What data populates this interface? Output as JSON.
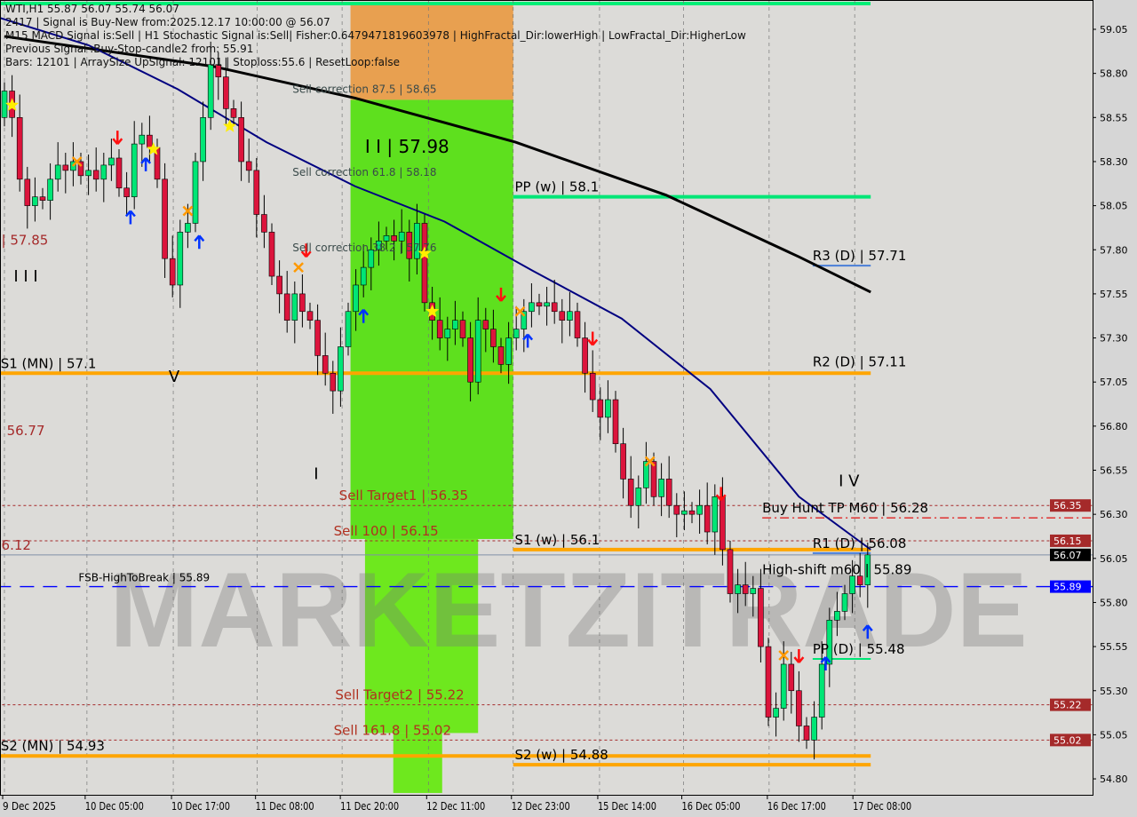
{
  "header": {
    "symbol_line": "WTI,H1  55.87 56.07 55.74 56.07",
    "lines": [
      "2417 | Signal is Buy-New from:2025.12.17 10:00:00 @ 56.07",
      "M15 MACD Signal is:Sell | H1 Stochastic Signal is:Sell| Fisher:0.6479471819603978 | HighFractal_Dir:lowerHigh | LowFractal_Dir:HigherLow",
      "Previous Signal :Buy-Stop-candle2 from: 55.91",
      "Bars: 12101 | ArraySize UpSignal: 12101 | Stoploss:55.6 | ResetLoop:false"
    ]
  },
  "watermark": "MARKETZITRADE",
  "colors": {
    "bull": "#00e676",
    "bear": "#dc143c",
    "orange": "#ffa500",
    "green_zone": "#5ee01e",
    "blue_ma": "#000080",
    "black_ma": "#000000",
    "level_green": "#00e676",
    "axis_red": "#a52a2a",
    "axis_blue": "#0000ff"
  },
  "chart_data": {
    "type": "candlestick",
    "symbol": "WTI",
    "timeframe": "H1",
    "ylim": [
      54.72,
      59.2
    ],
    "y_ticks": [
      59.05,
      58.8,
      58.55,
      58.3,
      58.05,
      57.8,
      57.55,
      57.3,
      57.05,
      56.8,
      56.55,
      56.3,
      56.05,
      55.8,
      55.55,
      55.3,
      55.05,
      54.8
    ],
    "x_ticks": [
      {
        "index": 0,
        "label": "9 Dec 2025"
      },
      {
        "index": 10.8,
        "label": "10 Dec 05:00"
      },
      {
        "index": 22.1,
        "label": "10 Dec 17:00"
      },
      {
        "index": 33.1,
        "label": "11 Dec 08:00"
      },
      {
        "index": 44.2,
        "label": "11 Dec 20:00"
      },
      {
        "index": 55.5,
        "label": "12 Dec 11:00"
      },
      {
        "index": 66.6,
        "label": "12 Dec 23:00"
      },
      {
        "index": 77.9,
        "label": "15 Dec 14:00"
      },
      {
        "index": 88.9,
        "label": "16 Dec 05:00"
      },
      {
        "index": 100.1,
        "label": "16 Dec 17:00"
      },
      {
        "index": 111.3,
        "label": "17 Dec 08:00"
      }
    ],
    "first_open": 58.55,
    "close": [
      58.7,
      58.55,
      58.2,
      58.05,
      58.1,
      58.08,
      58.2,
      58.28,
      58.25,
      58.3,
      58.22,
      58.25,
      58.2,
      58.28,
      58.32,
      58.15,
      58.1,
      58.4,
      58.45,
      58.38,
      58.2,
      57.75,
      57.6,
      57.9,
      57.95,
      58.3,
      58.55,
      58.85,
      58.78,
      58.6,
      58.55,
      58.3,
      58.25,
      58.0,
      57.9,
      57.65,
      57.55,
      57.4,
      57.55,
      57.45,
      57.4,
      57.2,
      57.1,
      57.0,
      57.25,
      57.45,
      57.6,
      57.7,
      57.8,
      57.85,
      57.88,
      57.85,
      57.9,
      57.75,
      57.95,
      57.5,
      57.4,
      57.3,
      57.35,
      57.4,
      57.3,
      57.05,
      57.4,
      57.35,
      57.25,
      57.15,
      57.3,
      57.35,
      57.45,
      57.5,
      57.48,
      57.5,
      57.45,
      57.4,
      57.45,
      57.3,
      57.1,
      56.95,
      56.85,
      56.95,
      56.7,
      56.5,
      56.35,
      56.45,
      56.6,
      56.4,
      56.5,
      56.35,
      56.3,
      56.32,
      56.3,
      56.35,
      56.2,
      56.4,
      56.1,
      55.85,
      55.9,
      55.85,
      55.88,
      55.55,
      55.15,
      55.2,
      55.45,
      55.3,
      55.1,
      55.02,
      55.15,
      55.45,
      55.7,
      55.75,
      55.85,
      55.95,
      55.9,
      56.07
    ],
    "moving_averages": [
      {
        "color": "#000000",
        "points": [
          [
            0,
            59.01
          ],
          [
            27.3,
            58.84
          ],
          [
            45.9,
            58.66
          ],
          [
            66.9,
            58.41
          ],
          [
            86.6,
            58.11
          ],
          [
            104,
            57.76
          ],
          [
            113.4,
            57.56
          ]
        ]
      },
      {
        "color": "#000080",
        "points": [
          [
            -1,
            59.12
          ],
          [
            11,
            58.96
          ],
          [
            22.7,
            58.71
          ],
          [
            34.3,
            58.41
          ],
          [
            45.9,
            58.16
          ],
          [
            57.6,
            57.96
          ],
          [
            69.2,
            57.68
          ],
          [
            80.8,
            57.41
          ],
          [
            92.4,
            57.01
          ],
          [
            104,
            56.4
          ],
          [
            113.4,
            56.1
          ]
        ]
      }
    ],
    "zones": [
      {
        "from": 45.3,
        "to": 66.6,
        "top": 59.19,
        "bottom": 58.65,
        "color": "#e8a050"
      },
      {
        "from": 45.3,
        "to": 66.6,
        "top": 58.65,
        "bottom": 56.16,
        "color": "#5ee01e"
      },
      {
        "from": 47.2,
        "to": 62,
        "top": 56.16,
        "bottom": 55.06,
        "color": "#6ee81e"
      },
      {
        "from": 50.9,
        "to": 57.3,
        "top": 55.06,
        "bottom": 54.72,
        "color": "#6ee81e"
      }
    ],
    "levels": [
      {
        "label": "S1 (MN) | 57.1",
        "price": 57.1,
        "from": -1,
        "to": 113.4,
        "color": "#ffa500",
        "style": "thick",
        "lx": -0.5
      },
      {
        "label": "S2 (MN) | 54.93",
        "price": 54.93,
        "from": -1,
        "to": 113.4,
        "color": "#ffa500",
        "style": "thick",
        "lx": -0.5
      },
      {
        "label": "PP (w) | 58.1",
        "price": 58.1,
        "from": 66.6,
        "to": 113.4,
        "color": "#00e676",
        "style": "thick",
        "lx": 66.8
      },
      {
        "label": "S1 (w) | 56.1",
        "price": 56.1,
        "from": 66.6,
        "to": 113.4,
        "color": "#ffa500",
        "style": "thick",
        "lx": 66.8
      },
      {
        "label": "S2 (w) | 54.88",
        "price": 54.88,
        "from": 66.6,
        "to": 113.4,
        "color": "#ffa500",
        "style": "thick",
        "lx": 66.8
      },
      {
        "label": "R3 (D) | 57.71",
        "price": 57.71,
        "from": 105.8,
        "to": 113.4,
        "color": "#4a7fd8",
        "style": "thin",
        "lx": 105.8
      },
      {
        "label": "R2 (D) | 57.11",
        "price": 57.11,
        "from": 105.8,
        "to": 113.4,
        "color": "#ffa500",
        "style": "none",
        "lx": 105.8
      },
      {
        "label": "R1 (D) | 56.08",
        "price": 56.08,
        "from": 105.8,
        "to": 113.4,
        "color": "#4a7fd8",
        "style": "thin",
        "lx": 105.8
      },
      {
        "label": "PP (D) | 55.48",
        "price": 55.48,
        "from": 105.8,
        "to": 113.4,
        "color": "#00e676",
        "style": "thin",
        "lx": 105.8
      },
      {
        "label": "Buy Hunt TP M60 | 56.28",
        "price": 56.28,
        "from": 99.2,
        "to": 143,
        "color": "#e01010",
        "style": "dashdot",
        "lx": 99.2
      },
      {
        "label": "High-shift m60 | 55.89",
        "price": 55.93,
        "from": 0,
        "to": 0,
        "color": "#000",
        "style": "none",
        "lx": 99.2
      },
      {
        "label": "FSB-HighToBreak | 55.89",
        "price": 55.89,
        "from": -1,
        "to": 143,
        "color": "#0000ff",
        "style": "dashed",
        "lx": 9.7
      },
      {
        "label": "Sell Target1 | 56.35",
        "price": 56.35,
        "from": -1,
        "to": 143,
        "color": "#a52a2a",
        "style": "dotted",
        "lx": 43.8
      },
      {
        "label": "Sell 100 | 56.15",
        "price": 56.15,
        "from": -1,
        "to": 143,
        "color": "#a52a2a",
        "style": "dotted",
        "lx": 43.1
      },
      {
        "label": "Sell Target2 | 55.22",
        "price": 55.22,
        "from": -1,
        "to": 143,
        "color": "#a52a2a",
        "style": "dotted",
        "lx": 43.3
      },
      {
        "label": "Sell 161.8 | 55.02",
        "price": 55.02,
        "from": -1,
        "to": 143,
        "color": "#a52a2a",
        "style": "dotted",
        "lx": 43.1
      },
      {
        "label": "",
        "price": 56.07,
        "from": -1,
        "to": 143,
        "color": "#8090a8",
        "style": "thin",
        "lx": 0
      }
    ],
    "annotations": [
      {
        "text": "Sell correction 87.5 | 58.65",
        "index": 37.7,
        "price": 58.69,
        "color": "#3a4a4a",
        "size": 12
      },
      {
        "text": "Sell correction 61.8 | 58.18",
        "index": 37.7,
        "price": 58.22,
        "color": "#3a4a4a",
        "size": 12
      },
      {
        "text": "Sell correction 38.2 | 57.76",
        "index": 37.7,
        "price": 57.79,
        "color": "#3a4a4a",
        "size": 12
      },
      {
        "text": "I I | 57.98",
        "index": 47.2,
        "price": 58.35,
        "color": "#000",
        "size": 20
      },
      {
        "text": "| 57.85",
        "index": -0.4,
        "price": 57.83,
        "color": "#a52a2a",
        "size": 15
      },
      {
        "text": "56.77",
        "index": 0.3,
        "price": 56.75,
        "color": "#a52a2a",
        "size": 15
      },
      {
        "text": "6.12",
        "index": -0.4,
        "price": 56.1,
        "color": "#a52a2a",
        "size": 15
      },
      {
        "text": "I I I",
        "index": 1.2,
        "price": 57.62,
        "color": "#000",
        "size": 18
      },
      {
        "text": "V",
        "index": 21.5,
        "price": 57.05,
        "color": "#000",
        "size": 18
      },
      {
        "text": "I",
        "index": 40.5,
        "price": 56.5,
        "color": "#000",
        "size": 18
      },
      {
        "text": "I V",
        "index": 109.2,
        "price": 56.46,
        "color": "#000",
        "size": 18
      }
    ],
    "markers": [
      {
        "index": 1,
        "price": 58.62,
        "type": "star"
      },
      {
        "index": 55,
        "price": 57.78,
        "type": "star"
      },
      {
        "index": 56,
        "price": 57.45,
        "type": "star"
      },
      {
        "index": 19.5,
        "price": 58.37,
        "type": "star"
      },
      {
        "index": 29.5,
        "price": 58.5,
        "type": "star"
      },
      {
        "index": 16.5,
        "price": 57.98,
        "type": "up"
      },
      {
        "index": 18.5,
        "price": 58.28,
        "type": "up"
      },
      {
        "index": 25.5,
        "price": 57.84,
        "type": "up"
      },
      {
        "index": 47,
        "price": 57.42,
        "type": "up"
      },
      {
        "index": 68.5,
        "price": 57.28,
        "type": "up"
      },
      {
        "index": 107.5,
        "price": 55.45,
        "type": "up"
      },
      {
        "index": 113,
        "price": 55.63,
        "type": "up"
      },
      {
        "index": 14.8,
        "price": 58.44,
        "type": "down"
      },
      {
        "index": 39.5,
        "price": 57.8,
        "type": "down"
      },
      {
        "index": 65,
        "price": 57.55,
        "type": "down"
      },
      {
        "index": 77,
        "price": 57.3,
        "type": "down"
      },
      {
        "index": 93.8,
        "price": 56.42,
        "type": "down"
      },
      {
        "index": 104,
        "price": 55.5,
        "type": "down"
      },
      {
        "index": 9.5,
        "price": 58.3,
        "type": "x"
      },
      {
        "index": 24,
        "price": 58.02,
        "type": "x"
      },
      {
        "index": 38.5,
        "price": 57.7,
        "type": "x"
      },
      {
        "index": 84.5,
        "price": 56.6,
        "type": "x"
      },
      {
        "index": 102,
        "price": 55.5,
        "type": "x"
      },
      {
        "index": 67.5,
        "price": 57.45,
        "type": "x"
      }
    ],
    "axis_tags": [
      {
        "price": 56.35,
        "label": "56.35",
        "bg": "#a52a2a"
      },
      {
        "price": 56.15,
        "label": "56.15",
        "bg": "#a52a2a"
      },
      {
        "price": 56.07,
        "label": "56.07",
        "bg": "#000000"
      },
      {
        "price": 55.89,
        "label": "55.89",
        "bg": "#0000ff"
      },
      {
        "price": 55.22,
        "label": "55.22",
        "bg": "#a52a2a"
      },
      {
        "price": 55.02,
        "label": "55.02",
        "bg": "#a52a2a"
      }
    ]
  }
}
